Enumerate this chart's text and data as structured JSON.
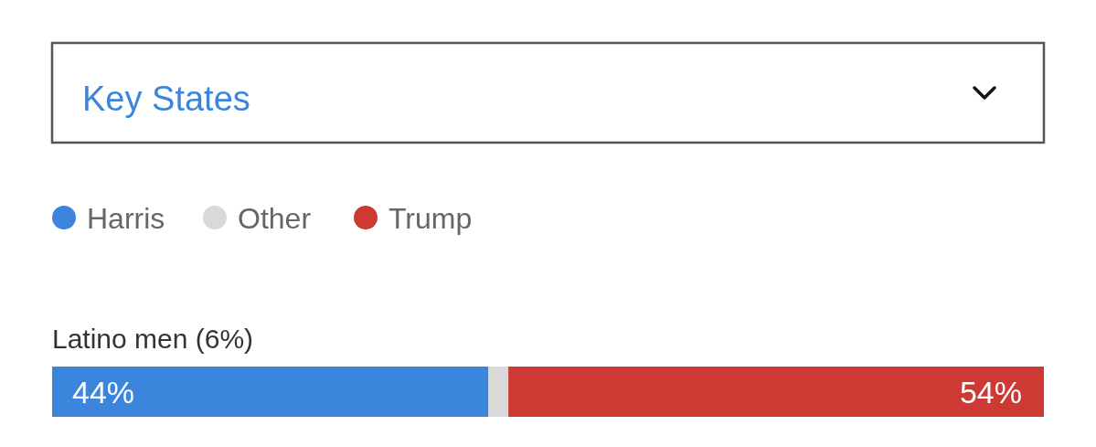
{
  "chart_data": {
    "type": "bar",
    "title": "Key States",
    "orientation": "horizontal",
    "stacked": true,
    "categories": [
      "Latino men (6%)"
    ],
    "xlim": [
      0,
      100
    ],
    "legend": "top left",
    "series": [
      {
        "name": "Harris",
        "color": "#3b86dc",
        "values": [
          44
        ],
        "value_labels": [
          "44%"
        ]
      },
      {
        "name": "Other",
        "color": "#d9d9d9",
        "values": [
          2
        ],
        "value_labels": [
          null
        ]
      },
      {
        "name": "Trump",
        "color": "#cc3a33",
        "values": [
          54
        ],
        "value_labels": [
          "54%"
        ]
      }
    ]
  }
}
